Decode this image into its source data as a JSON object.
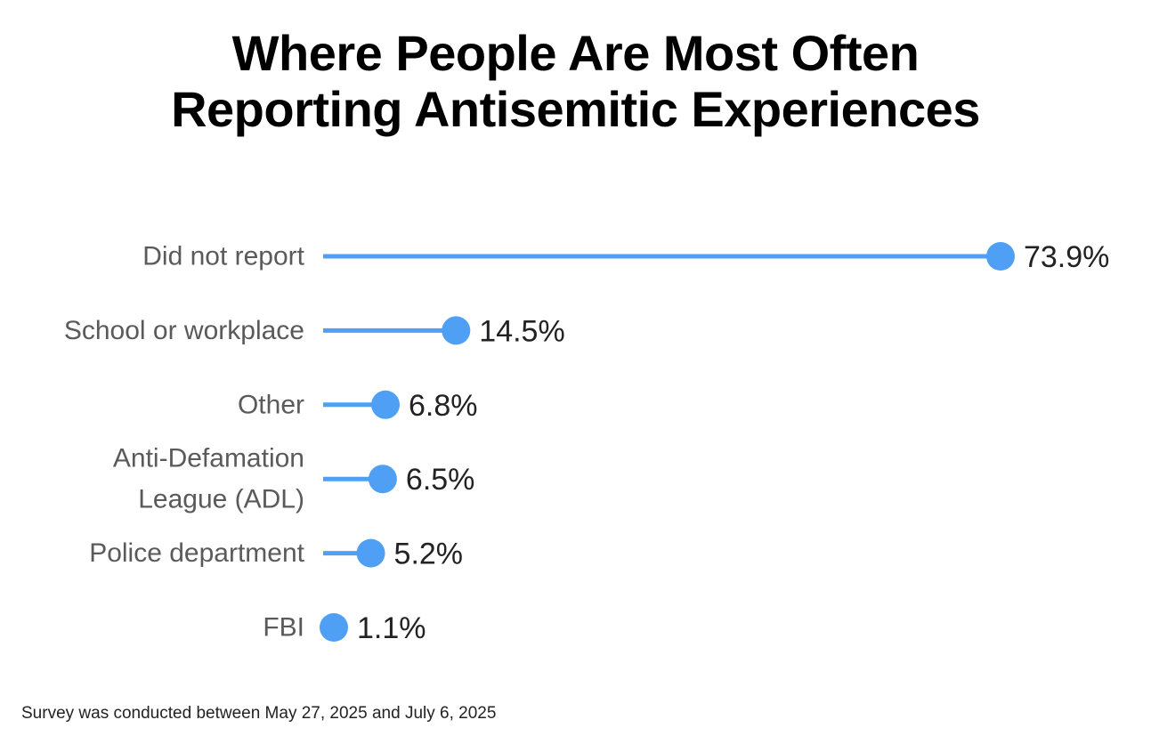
{
  "chart_data": {
    "type": "lollipop",
    "title_lines": [
      "Where People Are Most Often",
      "Reporting Antisemitic Experiences"
    ],
    "categories": [
      [
        "Did not report"
      ],
      [
        "School or workplace"
      ],
      [
        "Other"
      ],
      [
        "Anti-Defamation",
        "League (ADL)"
      ],
      [
        "Police department"
      ],
      [
        "FBI"
      ]
    ],
    "values": [
      73.9,
      14.5,
      6.8,
      6.5,
      5.2,
      1.1
    ],
    "value_labels": [
      "73.9%",
      "14.5%",
      "6.8%",
      "6.5%",
      "5.2%",
      "1.1%"
    ],
    "xlim": [
      0,
      74
    ],
    "color": "#4f9ff5",
    "grid": false,
    "footnote": "Survey was conducted between May 27, 2025 and July 6, 2025"
  }
}
